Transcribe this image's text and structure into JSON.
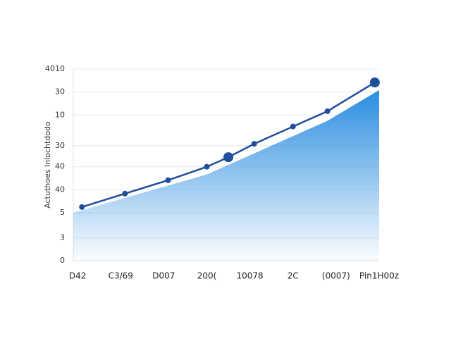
{
  "chart_data": {
    "type": "line",
    "ylabel": "Actuthoes Inlochtdodo",
    "categories": [
      "D42",
      "C3/69",
      "D007",
      "200(",
      "10078",
      "2C",
      "(0007)",
      "Pin1H00z"
    ],
    "xlim": [
      -0.1,
      7.0
    ],
    "ylim": [
      0,
      100
    ],
    "yticks": [
      0,
      {
        "value": 12,
        "label": "3"
      },
      {
        "value": 25,
        "label": "5"
      },
      {
        "value": 37,
        "label": "40"
      },
      {
        "value": 49,
        "label": "40"
      },
      {
        "value": 60,
        "label": "30"
      },
      {
        "value": 76,
        "label": "10"
      },
      {
        "value": 88,
        "label": "30"
      },
      {
        "value": 100,
        "label": "4010"
      }
    ],
    "grid": true,
    "area": {
      "color": "#2a8de0",
      "x": [
        -0.1,
        3.0,
        5.8,
        7.0
      ],
      "values": [
        25,
        45,
        73,
        89
      ]
    },
    "series": [
      {
        "color": "#1f4e9c",
        "x": [
          0.1,
          1.1,
          2.1,
          3.0,
          3.5,
          4.1,
          5.0,
          5.8,
          6.9
        ],
        "values": [
          28,
          35,
          42,
          49,
          54,
          61,
          70,
          78,
          93
        ],
        "marker_sizes": [
          4,
          4,
          4,
          4,
          7,
          4,
          4,
          4,
          7
        ]
      }
    ]
  }
}
